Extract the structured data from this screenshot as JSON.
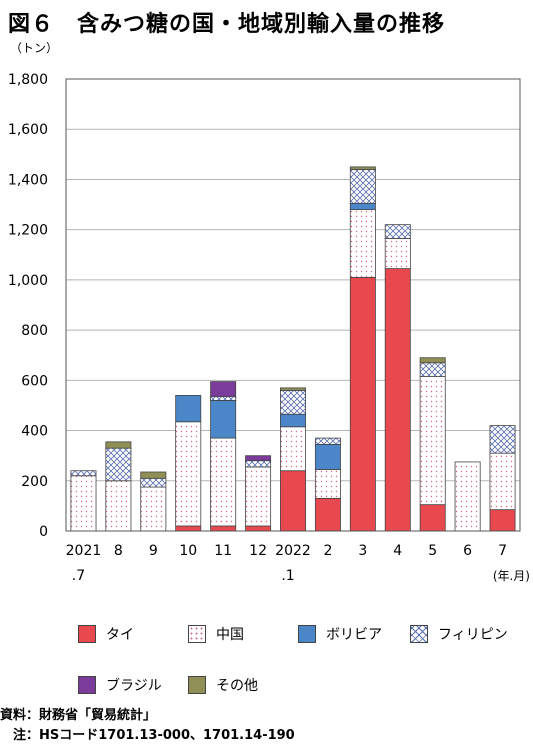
{
  "title": "図６　含みつ糖の国・地域別輸入量の推移",
  "chart_data": {
    "type": "bar",
    "stacked": true,
    "y_unit_label": "（トン）",
    "x_unit_label": "(年.月)",
    "ylim": [
      0,
      1800
    ],
    "yticks": [
      "0",
      "200",
      "400",
      "600",
      "800",
      "1,000",
      "1,200",
      "1,400",
      "1,600",
      "1,800"
    ],
    "ytick_values": [
      0,
      200,
      400,
      600,
      800,
      1000,
      1200,
      1400,
      1600,
      1800
    ],
    "categories": [
      {
        "line1": "2021",
        "line2": ".7"
      },
      {
        "line1": "8",
        "line2": ""
      },
      {
        "line1": "9",
        "line2": ""
      },
      {
        "line1": "10",
        "line2": ""
      },
      {
        "line1": "11",
        "line2": ""
      },
      {
        "line1": "12",
        "line2": ""
      },
      {
        "line1": "2022",
        "line2": ".1"
      },
      {
        "line1": "2",
        "line2": ""
      },
      {
        "line1": "3",
        "line2": ""
      },
      {
        "line1": "4",
        "line2": ""
      },
      {
        "line1": "5",
        "line2": ""
      },
      {
        "line1": "6",
        "line2": ""
      },
      {
        "line1": "7",
        "line2": ""
      }
    ],
    "series": [
      {
        "name": "タイ",
        "color": "#e8494f",
        "pattern": "solid",
        "values": [
          0,
          0,
          0,
          20,
          20,
          20,
          240,
          130,
          1010,
          1045,
          105,
          0,
          85
        ]
      },
      {
        "name": "中国",
        "color": "#ffffff",
        "pattern": "dots",
        "values": [
          220,
          200,
          175,
          415,
          350,
          235,
          175,
          115,
          270,
          120,
          510,
          275,
          225
        ]
      },
      {
        "name": "ボリビア",
        "color": "#4a86c8",
        "pattern": "solid",
        "values": [
          0,
          0,
          0,
          105,
          150,
          0,
          50,
          100,
          25,
          0,
          0,
          0,
          0
        ]
      },
      {
        "name": "フィリピン",
        "color": "#ffffff",
        "pattern": "cross",
        "values": [
          20,
          130,
          35,
          0,
          15,
          25,
          95,
          25,
          135,
          55,
          55,
          0,
          110
        ]
      },
      {
        "name": "ブラジル",
        "color": "#7a3b9a",
        "pattern": "solid",
        "values": [
          0,
          0,
          0,
          0,
          60,
          20,
          0,
          0,
          0,
          0,
          0,
          0,
          0
        ]
      },
      {
        "name": "その他",
        "color": "#8f8f56",
        "pattern": "solid",
        "values": [
          0,
          25,
          25,
          0,
          0,
          0,
          10,
          0,
          10,
          0,
          20,
          0,
          0
        ]
      }
    ]
  },
  "footnotes": {
    "source": "資料：財務省「貿易統計」",
    "note": "　注：HSコード1701.13-000、1701.14-190"
  }
}
